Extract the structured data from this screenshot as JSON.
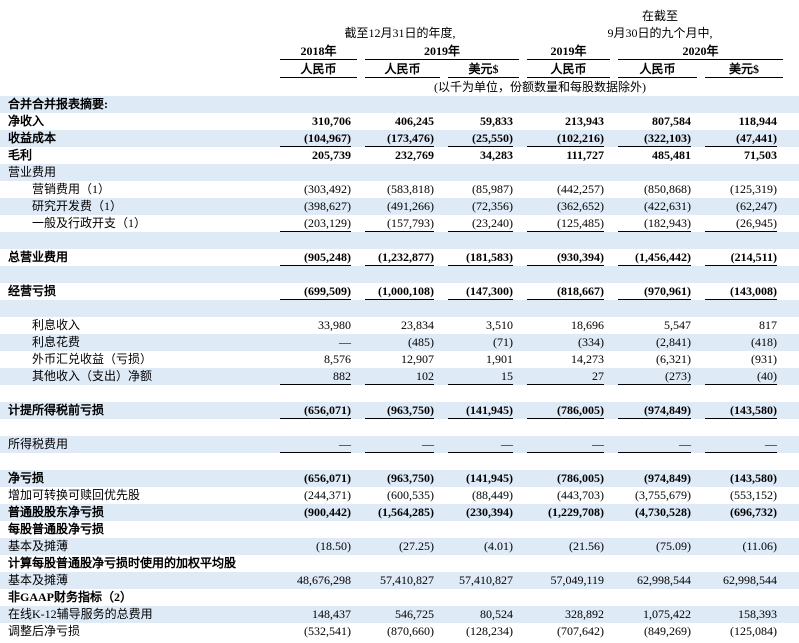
{
  "header": {
    "period_fy": "截至12月31日的年度,",
    "period_9m_line1": "在截至",
    "period_9m_line2": "9月30日的九个月中,",
    "years": [
      "2018年",
      "2019年",
      "2019年",
      "2020年"
    ],
    "currencies": [
      "人民币",
      "人民币",
      "美元$",
      "人民币",
      "人民币",
      "美元$"
    ],
    "note": "(以千为单位，份额数量和每股数据除外)"
  },
  "table": {
    "rows": [
      {
        "label": "合并合并报表摘要:"
      },
      {
        "label": "净收入",
        "values": [
          "310,706",
          "406,245",
          "59,833",
          "213,943",
          "807,584",
          "118,944"
        ]
      },
      {
        "label": "收益成本",
        "values": [
          "(104,967)",
          "(173,476)",
          "(25,550)",
          "(102,216)",
          "(322,103)",
          "(47,441)"
        ]
      },
      {
        "label": "毛利",
        "values": [
          "205,739",
          "232,769",
          "34,283",
          "111,727",
          "485,481",
          "71,503"
        ]
      },
      {
        "label": "营业费用"
      },
      {
        "label": "营销费用（1）",
        "values": [
          "(303,492)",
          "(583,818)",
          "(85,987)",
          "(442,257)",
          "(850,868)",
          "(125,319)"
        ]
      },
      {
        "label": "研究开发费（1）",
        "values": [
          "(398,627)",
          "(491,266)",
          "(72,356)",
          "(362,652)",
          "(422,631)",
          "(62,247)"
        ]
      },
      {
        "label": "一般及行政开支（1）",
        "values": [
          "(203,129)",
          "(157,793)",
          "(23,240)",
          "(125,485)",
          "(182,943)",
          "(26,945)"
        ]
      },
      {
        "label": "总营业费用",
        "values": [
          "(905,248)",
          "(1,232,877)",
          "(181,583)",
          "(930,394)",
          "(1,456,442)",
          "(214,511)"
        ]
      },
      {
        "label": "经营亏损",
        "values": [
          "(699,509)",
          "(1,000,108)",
          "(147,300)",
          "(818,667)",
          "(970,961)",
          "(143,008)"
        ]
      },
      {
        "label": "利息收入",
        "values": [
          "33,980",
          "23,834",
          "3,510",
          "18,696",
          "5,547",
          "817"
        ]
      },
      {
        "label": "利息花费",
        "values": [
          "—",
          "(485)",
          "(71)",
          "(334)",
          "(2,841)",
          "(418)"
        ]
      },
      {
        "label": "外币汇兑收益（亏损）",
        "values": [
          "8,576",
          "12,907",
          "1,901",
          "14,273",
          "(6,321)",
          "(931)"
        ]
      },
      {
        "label": "其他收入（支出）净额",
        "values": [
          "882",
          "102",
          "15",
          "27",
          "(273)",
          "(40)"
        ]
      },
      {
        "label": "计提所得税前亏损",
        "values": [
          "(656,071)",
          "(963,750)",
          "(141,945)",
          "(786,005)",
          "(974,849)",
          "(143,580)"
        ]
      },
      {
        "label": "所得税费用",
        "values": [
          "—",
          "—",
          "—",
          "—",
          "—",
          "—"
        ]
      },
      {
        "label": "净亏损",
        "values": [
          "(656,071)",
          "(963,750)",
          "(141,945)",
          "(786,005)",
          "(974,849)",
          "(143,580)"
        ]
      },
      {
        "label": "增加可转换可赎回优先股",
        "values": [
          "(244,371)",
          "(600,535)",
          "(88,449)",
          "(443,703)",
          "(3,755,679)",
          "(553,152)"
        ]
      },
      {
        "label": "普通股股东净亏损",
        "values": [
          "(900,442)",
          "(1,564,285)",
          "(230,394)",
          "(1,229,708)",
          "(4,730,528)",
          "(696,732)"
        ]
      },
      {
        "label": "每股普通股净亏损"
      },
      {
        "label": "基本及摊薄",
        "values": [
          "(18.50)",
          "(27.25)",
          "(4.01)",
          "(21.56)",
          "(75.09)",
          "(11.06)"
        ]
      },
      {
        "label": "计算每股普通股净亏损时使用的加权平均股"
      },
      {
        "label": "基本及摊薄",
        "values": [
          "48,676,298",
          "57,410,827",
          "57,410,827",
          "57,049,119",
          "62,998,544",
          "62,998,544"
        ]
      },
      {
        "label": "非GAAP财务指标（2）"
      },
      {
        "label": "在线K-12辅导服务的总费用",
        "values": [
          "148,437",
          "546,725",
          "80,524",
          "328,892",
          "1,075,422",
          "158,393"
        ]
      },
      {
        "label": "调整后净亏损",
        "values": [
          "(532,541)",
          "(870,660)",
          "(128,234)",
          "(707,642)",
          "(849,269)",
          "(125,084)"
        ]
      }
    ]
  }
}
